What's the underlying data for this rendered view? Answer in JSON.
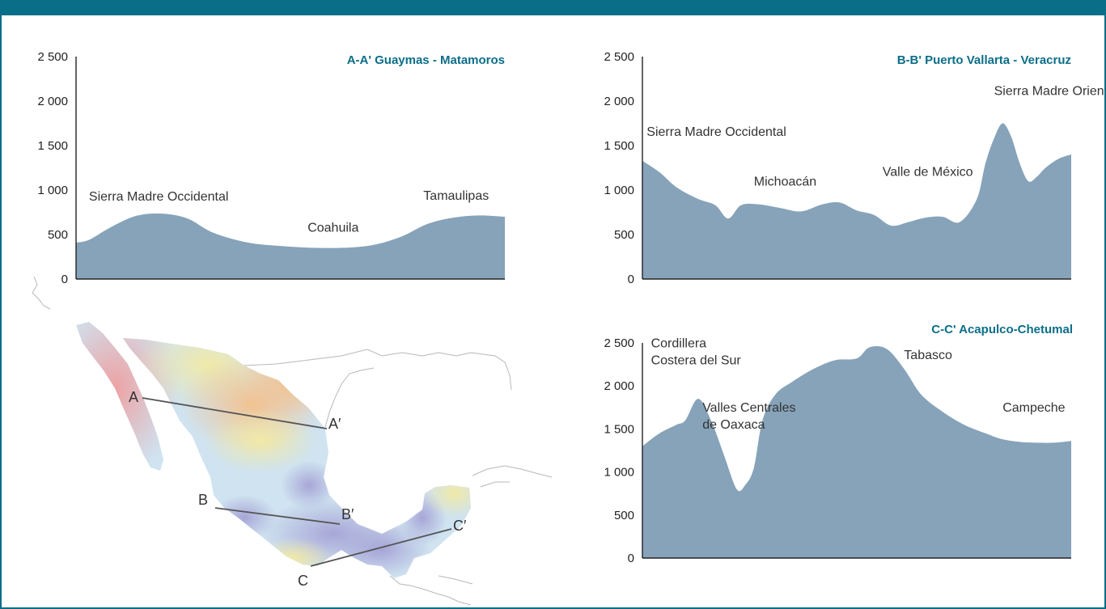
{
  "colors": {
    "accent": "#0b6e88",
    "area_fill": "#86a3b9",
    "axis": "#222222"
  },
  "chart_data": [
    {
      "type": "area",
      "title": "A-A' Guaymas - Matamoros",
      "ylim": [
        0,
        2500
      ],
      "yticks": [
        "0",
        "500",
        "1 000",
        "1 500",
        "2 000",
        "2 500"
      ],
      "x": [
        0,
        0.03,
        0.08,
        0.14,
        0.2,
        0.26,
        0.32,
        0.4,
        0.48,
        0.56,
        0.64,
        0.7,
        0.76,
        0.82,
        0.88,
        0.94,
        1.0
      ],
      "y": [
        410,
        440,
        580,
        710,
        735,
        680,
        520,
        410,
        370,
        350,
        355,
        390,
        480,
        620,
        690,
        715,
        700
      ],
      "annotations": [
        {
          "text": "Sierra Madre Occidental",
          "x": 0.03,
          "y": 880
        },
        {
          "text": "Coahuila",
          "x": 0.54,
          "y": 530
        },
        {
          "text": "Tamaulipas",
          "x": 0.81,
          "y": 890
        }
      ]
    },
    {
      "type": "area",
      "title": "B-B' Puerto Vallarta - Veracruz",
      "ylim": [
        0,
        2500
      ],
      "yticks": [
        "0",
        "500",
        "1 000",
        "1 500",
        "2 000",
        "2 500"
      ],
      "x": [
        0,
        0.04,
        0.08,
        0.13,
        0.17,
        0.2,
        0.23,
        0.27,
        0.32,
        0.37,
        0.42,
        0.46,
        0.5,
        0.54,
        0.58,
        0.62,
        0.66,
        0.7,
        0.74,
        0.78,
        0.8,
        0.82,
        0.84,
        0.86,
        0.88,
        0.9,
        0.92,
        0.94,
        0.97,
        1.0
      ],
      "y": [
        1330,
        1200,
        1030,
        900,
        830,
        680,
        830,
        840,
        800,
        760,
        840,
        860,
        770,
        720,
        600,
        640,
        690,
        700,
        640,
        900,
        1300,
        1580,
        1750,
        1600,
        1300,
        1100,
        1150,
        1250,
        1350,
        1400
      ],
      "annotations": [
        {
          "text": "Sierra Madre Occidental",
          "x": 0.01,
          "y": 1610
        },
        {
          "text": "Michoacán",
          "x": 0.26,
          "y": 1050
        },
        {
          "text": "Valle de México",
          "x": 0.56,
          "y": 1160
        },
        {
          "text": "Sierra Madre Oriental",
          "x": 0.82,
          "y": 2070
        }
      ]
    },
    {
      "type": "area",
      "title": "C-C' Acapulco-Chetumal",
      "ylim": [
        0,
        2500
      ],
      "yticks": [
        "0",
        "500",
        "1 000",
        "1 500",
        "2 000",
        "2 500"
      ],
      "x": [
        0,
        0.04,
        0.08,
        0.1,
        0.13,
        0.16,
        0.19,
        0.22,
        0.24,
        0.26,
        0.28,
        0.31,
        0.35,
        0.4,
        0.45,
        0.5,
        0.53,
        0.57,
        0.61,
        0.65,
        0.7,
        0.75,
        0.8,
        0.84,
        0.88,
        0.92,
        0.96,
        1.0
      ],
      "y": [
        1300,
        1450,
        1550,
        1600,
        1850,
        1600,
        1200,
        800,
        850,
        1050,
        1600,
        1900,
        2050,
        2200,
        2300,
        2320,
        2450,
        2430,
        2200,
        1900,
        1700,
        1550,
        1450,
        1380,
        1350,
        1340,
        1340,
        1360
      ],
      "annotations": [
        {
          "lines": [
            "Cordillera",
            "Costera del Sur"
          ],
          "x": 0.02,
          "y": 2450
        },
        {
          "lines": [
            "Valles Centrales",
            "de Oaxaca"
          ],
          "x": 0.14,
          "y": 1700
        },
        {
          "text": "Tabasco",
          "x": 0.61,
          "y": 2310
        },
        {
          "text": "Campeche",
          "x": 0.84,
          "y": 1700
        }
      ]
    }
  ],
  "map": {
    "section_labels": [
      {
        "label": "A",
        "endpoint": "start"
      },
      {
        "label": "A′",
        "endpoint": "end"
      },
      {
        "label": "B",
        "endpoint": "start"
      },
      {
        "label": "B′",
        "endpoint": "end"
      },
      {
        "label": "C",
        "endpoint": "start"
      },
      {
        "label": "C′",
        "endpoint": "end"
      }
    ]
  }
}
